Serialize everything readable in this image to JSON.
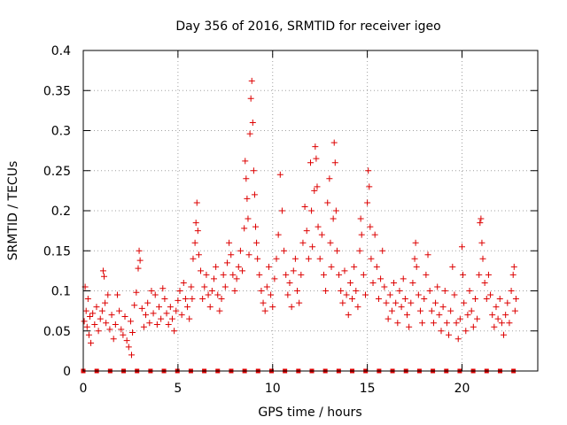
{
  "chart_data": {
    "type": "scatter",
    "title": "Day 356 of 2016, SRMTID for receiver igeo",
    "xlabel": "GPS time / hours",
    "ylabel": "SRMTID / TECUs",
    "xlim": [
      0,
      24
    ],
    "ylim": [
      0,
      0.4
    ],
    "xticks": [
      0,
      5,
      10,
      15,
      20
    ],
    "xtick_labels": [
      "0",
      "5",
      "10",
      "15",
      "20"
    ],
    "yticks": [
      0,
      0.05,
      0.1,
      0.15,
      0.2,
      0.25,
      0.3,
      0.35,
      0.4
    ],
    "ytick_labels": [
      "0",
      "0.05",
      "0.1",
      "0.15",
      "0.2",
      "0.25",
      "0.3",
      "0.35",
      "0.4"
    ],
    "grid": true,
    "marker_color": "#dd0000",
    "series": [
      {
        "name": "SRMTID",
        "marker": "plus",
        "points": [
          [
            0.05,
            0.062
          ],
          [
            0.1,
            0.105
          ],
          [
            0.15,
            0.075
          ],
          [
            0.2,
            0.055
          ],
          [
            0.25,
            0.09
          ],
          [
            0.3,
            0.045
          ],
          [
            0.35,
            0.068
          ],
          [
            0.4,
            0.035
          ],
          [
            0.5,
            0.072
          ],
          [
            0.6,
            0.058
          ],
          [
            0.7,
            0.08
          ],
          [
            0.8,
            0.05
          ],
          [
            0.9,
            0.065
          ],
          [
            1.0,
            0.075
          ],
          [
            1.05,
            0.125
          ],
          [
            1.1,
            0.118
          ],
          [
            1.15,
            0.085
          ],
          [
            1.2,
            0.06
          ],
          [
            1.3,
            0.095
          ],
          [
            1.4,
            0.052
          ],
          [
            1.5,
            0.07
          ],
          [
            1.6,
            0.04
          ],
          [
            1.7,
            0.058
          ],
          [
            1.8,
            0.095
          ],
          [
            1.9,
            0.075
          ],
          [
            2.0,
            0.052
          ],
          [
            2.1,
            0.045
          ],
          [
            2.2,
            0.068
          ],
          [
            2.3,
            0.038
          ],
          [
            2.4,
            0.03
          ],
          [
            2.5,
            0.062
          ],
          [
            2.55,
            0.02
          ],
          [
            2.6,
            0.048
          ],
          [
            2.7,
            0.082
          ],
          [
            2.8,
            0.098
          ],
          [
            2.9,
            0.128
          ],
          [
            2.95,
            0.15
          ],
          [
            3.0,
            0.138
          ],
          [
            3.1,
            0.078
          ],
          [
            3.2,
            0.055
          ],
          [
            3.3,
            0.07
          ],
          [
            3.4,
            0.085
          ],
          [
            3.5,
            0.06
          ],
          [
            3.6,
            0.1
          ],
          [
            3.7,
            0.072
          ],
          [
            3.8,
            0.095
          ],
          [
            3.9,
            0.058
          ],
          [
            4.0,
            0.08
          ],
          [
            4.1,
            0.065
          ],
          [
            4.2,
            0.103
          ],
          [
            4.3,
            0.09
          ],
          [
            4.4,
            0.072
          ],
          [
            4.5,
            0.058
          ],
          [
            4.6,
            0.08
          ],
          [
            4.7,
            0.065
          ],
          [
            4.8,
            0.05
          ],
          [
            4.9,
            0.075
          ],
          [
            5.0,
            0.088
          ],
          [
            5.1,
            0.1
          ],
          [
            5.2,
            0.07
          ],
          [
            5.3,
            0.11
          ],
          [
            5.4,
            0.09
          ],
          [
            5.5,
            0.08
          ],
          [
            5.6,
            0.065
          ],
          [
            5.7,
            0.105
          ],
          [
            5.75,
            0.09
          ],
          [
            5.8,
            0.14
          ],
          [
            5.9,
            0.16
          ],
          [
            5.95,
            0.185
          ],
          [
            6.0,
            0.21
          ],
          [
            6.05,
            0.175
          ],
          [
            6.1,
            0.145
          ],
          [
            6.2,
            0.125
          ],
          [
            6.3,
            0.09
          ],
          [
            6.4,
            0.105
          ],
          [
            6.5,
            0.12
          ],
          [
            6.6,
            0.095
          ],
          [
            6.7,
            0.08
          ],
          [
            6.8,
            0.1
          ],
          [
            6.9,
            0.115
          ],
          [
            7.0,
            0.13
          ],
          [
            7.1,
            0.095
          ],
          [
            7.2,
            0.075
          ],
          [
            7.3,
            0.09
          ],
          [
            7.4,
            0.12
          ],
          [
            7.5,
            0.105
          ],
          [
            7.6,
            0.135
          ],
          [
            7.7,
            0.16
          ],
          [
            7.8,
            0.145
          ],
          [
            7.9,
            0.12
          ],
          [
            8.0,
            0.1
          ],
          [
            8.1,
            0.115
          ],
          [
            8.2,
            0.13
          ],
          [
            8.3,
            0.15
          ],
          [
            8.4,
            0.125
          ],
          [
            8.5,
            0.178
          ],
          [
            8.55,
            0.262
          ],
          [
            8.6,
            0.24
          ],
          [
            8.65,
            0.215
          ],
          [
            8.7,
            0.19
          ],
          [
            8.75,
            0.145
          ],
          [
            8.8,
            0.296
          ],
          [
            8.85,
            0.34
          ],
          [
            8.9,
            0.362
          ],
          [
            8.95,
            0.31
          ],
          [
            9.0,
            0.25
          ],
          [
            9.05,
            0.22
          ],
          [
            9.1,
            0.18
          ],
          [
            9.15,
            0.16
          ],
          [
            9.2,
            0.14
          ],
          [
            9.3,
            0.12
          ],
          [
            9.4,
            0.1
          ],
          [
            9.5,
            0.085
          ],
          [
            9.6,
            0.075
          ],
          [
            9.7,
            0.105
          ],
          [
            9.8,
            0.13
          ],
          [
            9.9,
            0.095
          ],
          [
            10.0,
            0.08
          ],
          [
            10.1,
            0.115
          ],
          [
            10.2,
            0.14
          ],
          [
            10.3,
            0.17
          ],
          [
            10.4,
            0.245
          ],
          [
            10.5,
            0.2
          ],
          [
            10.6,
            0.15
          ],
          [
            10.7,
            0.12
          ],
          [
            10.8,
            0.095
          ],
          [
            10.9,
            0.11
          ],
          [
            11.0,
            0.08
          ],
          [
            11.1,
            0.125
          ],
          [
            11.2,
            0.14
          ],
          [
            11.3,
            0.1
          ],
          [
            11.4,
            0.085
          ],
          [
            11.5,
            0.12
          ],
          [
            11.6,
            0.16
          ],
          [
            11.7,
            0.205
          ],
          [
            11.8,
            0.175
          ],
          [
            11.9,
            0.14
          ],
          [
            12.0,
            0.26
          ],
          [
            12.05,
            0.2
          ],
          [
            12.1,
            0.155
          ],
          [
            12.2,
            0.225
          ],
          [
            12.25,
            0.28
          ],
          [
            12.3,
            0.265
          ],
          [
            12.35,
            0.23
          ],
          [
            12.4,
            0.18
          ],
          [
            12.5,
            0.14
          ],
          [
            12.6,
            0.17
          ],
          [
            12.7,
            0.12
          ],
          [
            12.8,
            0.1
          ],
          [
            12.9,
            0.21
          ],
          [
            13.0,
            0.24
          ],
          [
            13.05,
            0.16
          ],
          [
            13.1,
            0.13
          ],
          [
            13.2,
            0.19
          ],
          [
            13.25,
            0.285
          ],
          [
            13.3,
            0.26
          ],
          [
            13.35,
            0.2
          ],
          [
            13.4,
            0.15
          ],
          [
            13.5,
            0.12
          ],
          [
            13.6,
            0.1
          ],
          [
            13.7,
            0.085
          ],
          [
            13.8,
            0.125
          ],
          [
            13.9,
            0.095
          ],
          [
            14.0,
            0.07
          ],
          [
            14.1,
            0.11
          ],
          [
            14.2,
            0.09
          ],
          [
            14.3,
            0.13
          ],
          [
            14.4,
            0.1
          ],
          [
            14.5,
            0.08
          ],
          [
            14.6,
            0.15
          ],
          [
            14.65,
            0.19
          ],
          [
            14.7,
            0.17
          ],
          [
            14.8,
            0.12
          ],
          [
            14.9,
            0.095
          ],
          [
            15.0,
            0.21
          ],
          [
            15.05,
            0.25
          ],
          [
            15.1,
            0.23
          ],
          [
            15.15,
            0.18
          ],
          [
            15.2,
            0.14
          ],
          [
            15.3,
            0.11
          ],
          [
            15.4,
            0.17
          ],
          [
            15.5,
            0.13
          ],
          [
            15.6,
            0.09
          ],
          [
            15.7,
            0.115
          ],
          [
            15.8,
            0.15
          ],
          [
            15.9,
            0.105
          ],
          [
            16.0,
            0.085
          ],
          [
            16.1,
            0.065
          ],
          [
            16.2,
            0.095
          ],
          [
            16.3,
            0.075
          ],
          [
            16.4,
            0.11
          ],
          [
            16.5,
            0.085
          ],
          [
            16.6,
            0.06
          ],
          [
            16.7,
            0.1
          ],
          [
            16.8,
            0.08
          ],
          [
            16.9,
            0.115
          ],
          [
            17.0,
            0.09
          ],
          [
            17.1,
            0.07
          ],
          [
            17.2,
            0.055
          ],
          [
            17.3,
            0.085
          ],
          [
            17.4,
            0.11
          ],
          [
            17.5,
            0.14
          ],
          [
            17.55,
            0.16
          ],
          [
            17.6,
            0.13
          ],
          [
            17.7,
            0.095
          ],
          [
            17.8,
            0.075
          ],
          [
            17.9,
            0.06
          ],
          [
            18.0,
            0.09
          ],
          [
            18.1,
            0.12
          ],
          [
            18.2,
            0.145
          ],
          [
            18.3,
            0.1
          ],
          [
            18.4,
            0.075
          ],
          [
            18.5,
            0.06
          ],
          [
            18.6,
            0.085
          ],
          [
            18.7,
            0.105
          ],
          [
            18.8,
            0.07
          ],
          [
            18.9,
            0.05
          ],
          [
            19.0,
            0.08
          ],
          [
            19.1,
            0.1
          ],
          [
            19.2,
            0.06
          ],
          [
            19.3,
            0.045
          ],
          [
            19.4,
            0.075
          ],
          [
            19.5,
            0.13
          ],
          [
            19.6,
            0.095
          ],
          [
            19.7,
            0.06
          ],
          [
            19.8,
            0.04
          ],
          [
            19.9,
            0.065
          ],
          [
            20.0,
            0.155
          ],
          [
            20.05,
            0.12
          ],
          [
            20.1,
            0.085
          ],
          [
            20.2,
            0.05
          ],
          [
            20.3,
            0.07
          ],
          [
            20.4,
            0.1
          ],
          [
            20.5,
            0.075
          ],
          [
            20.6,
            0.055
          ],
          [
            20.7,
            0.09
          ],
          [
            20.8,
            0.065
          ],
          [
            20.9,
            0.12
          ],
          [
            20.95,
            0.185
          ],
          [
            21.0,
            0.19
          ],
          [
            21.05,
            0.16
          ],
          [
            21.1,
            0.14
          ],
          [
            21.2,
            0.11
          ],
          [
            21.3,
            0.09
          ],
          [
            21.4,
            0.12
          ],
          [
            21.5,
            0.095
          ],
          [
            21.6,
            0.07
          ],
          [
            21.7,
            0.055
          ],
          [
            21.8,
            0.08
          ],
          [
            21.9,
            0.065
          ],
          [
            22.0,
            0.09
          ],
          [
            22.1,
            0.06
          ],
          [
            22.2,
            0.045
          ],
          [
            22.3,
            0.07
          ],
          [
            22.4,
            0.085
          ],
          [
            22.5,
            0.06
          ],
          [
            22.6,
            0.1
          ],
          [
            22.7,
            0.12
          ],
          [
            22.75,
            0.13
          ],
          [
            22.8,
            0.075
          ],
          [
            22.85,
            0.09
          ]
        ]
      },
      {
        "name": "baseline markers",
        "marker": "square",
        "points": [
          [
            0.0,
            0
          ],
          [
            0.71,
            0
          ],
          [
            1.42,
            0
          ],
          [
            2.13,
            0
          ],
          [
            2.84,
            0
          ],
          [
            3.55,
            0
          ],
          [
            4.26,
            0
          ],
          [
            4.97,
            0
          ],
          [
            5.68,
            0
          ],
          [
            6.39,
            0
          ],
          [
            7.1,
            0
          ],
          [
            7.81,
            0
          ],
          [
            8.52,
            0
          ],
          [
            9.23,
            0
          ],
          [
            9.94,
            0
          ],
          [
            10.65,
            0
          ],
          [
            11.36,
            0
          ],
          [
            12.07,
            0
          ],
          [
            12.78,
            0
          ],
          [
            13.49,
            0
          ],
          [
            14.2,
            0
          ],
          [
            14.91,
            0
          ],
          [
            15.62,
            0
          ],
          [
            16.33,
            0
          ],
          [
            17.04,
            0
          ],
          [
            17.75,
            0
          ],
          [
            18.46,
            0
          ],
          [
            19.17,
            0
          ],
          [
            19.88,
            0
          ],
          [
            20.59,
            0
          ],
          [
            21.3,
            0
          ],
          [
            22.01,
            0
          ],
          [
            22.72,
            0
          ]
        ]
      }
    ]
  }
}
